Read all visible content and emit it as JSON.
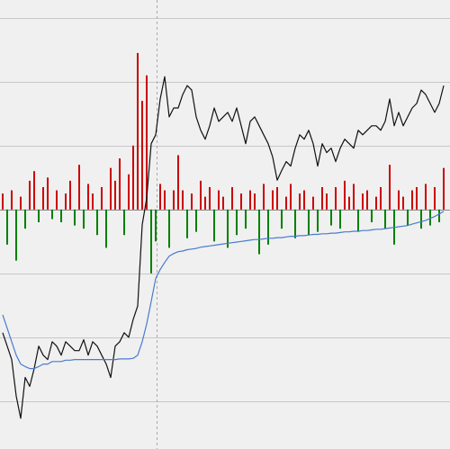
{
  "chart_data": {
    "type": "combo",
    "xlim": [
      0,
      98
    ],
    "ylim": [
      -3.75,
      3.28
    ],
    "yticks": [
      -3,
      -2,
      -1,
      0,
      1,
      2,
      3
    ],
    "grid": true,
    "vline_x": 34.2,
    "series": [
      {
        "type": "bar",
        "color_positive": "#cc0000",
        "color_negative": "#008000",
        "values": [
          0.25,
          -0.55,
          0.3,
          -0.8,
          0.2,
          -0.3,
          0.45,
          0.6,
          -0.2,
          0.35,
          0.5,
          -0.15,
          0.3,
          -0.2,
          0.25,
          0.45,
          -0.25,
          0.7,
          -0.3,
          0.4,
          0.25,
          -0.4,
          0.35,
          -0.6,
          0.65,
          0.45,
          0.8,
          -0.4,
          0.55,
          1.0,
          2.45,
          1.7,
          2.1,
          -1.0,
          -0.5,
          0.4,
          0.3,
          -0.6,
          0.3,
          0.85,
          0.3,
          -0.45,
          0.25,
          -0.35,
          0.45,
          0.2,
          0.35,
          -0.5,
          0.3,
          0.2,
          -0.6,
          0.35,
          -0.4,
          0.25,
          -0.3,
          0.3,
          0.25,
          -0.7,
          0.4,
          -0.55,
          0.3,
          0.35,
          -0.3,
          0.2,
          0.4,
          -0.45,
          0.25,
          0.3,
          -0.4,
          0.2,
          -0.35,
          0.35,
          0.25,
          -0.25,
          0.35,
          -0.3,
          0.45,
          0.2,
          0.4,
          -0.35,
          0.25,
          0.3,
          -0.2,
          0.2,
          0.35,
          -0.3,
          0.7,
          -0.55,
          0.3,
          0.2,
          -0.25,
          0.3,
          0.35,
          -0.3,
          0.4,
          -0.25,
          0.35,
          -0.2,
          0.65
        ]
      },
      {
        "type": "line",
        "color": "#111111",
        "values": [
          -1.93,
          -2.14,
          -2.35,
          -2.92,
          -3.27,
          -2.63,
          -2.77,
          -2.49,
          -2.14,
          -2.28,
          -2.35,
          -2.07,
          -2.14,
          -2.28,
          -2.07,
          -2.14,
          -2.21,
          -2.21,
          -2.04,
          -2.28,
          -2.07,
          -2.14,
          -2.28,
          -2.42,
          -2.63,
          -2.14,
          -2.07,
          -1.93,
          -2.0,
          -1.72,
          -1.51,
          -0.24,
          0.18,
          1.03,
          1.17,
          1.73,
          2.08,
          1.45,
          1.59,
          1.59,
          1.8,
          1.94,
          1.87,
          1.45,
          1.24,
          1.1,
          1.31,
          1.59,
          1.38,
          1.45,
          1.52,
          1.38,
          1.59,
          1.31,
          1.03,
          1.38,
          1.45,
          1.31,
          1.17,
          1.03,
          0.82,
          0.46,
          0.61,
          0.75,
          0.68,
          0.96,
          1.17,
          1.1,
          1.24,
          1.03,
          0.68,
          1.03,
          0.89,
          0.96,
          0.75,
          0.96,
          1.1,
          1.03,
          0.96,
          1.24,
          1.17,
          1.24,
          1.31,
          1.31,
          1.24,
          1.38,
          1.73,
          1.31,
          1.52,
          1.31,
          1.45,
          1.59,
          1.66,
          1.87,
          1.8,
          1.66,
          1.52,
          1.66,
          1.94
        ]
      },
      {
        "type": "line",
        "color": "#4a7bd0",
        "values": [
          -1.65,
          -1.86,
          -2.07,
          -2.28,
          -2.42,
          -2.46,
          -2.49,
          -2.49,
          -2.46,
          -2.42,
          -2.42,
          -2.38,
          -2.38,
          -2.38,
          -2.36,
          -2.36,
          -2.35,
          -2.35,
          -2.35,
          -2.35,
          -2.35,
          -2.35,
          -2.35,
          -2.35,
          -2.35,
          -2.35,
          -2.34,
          -2.34,
          -2.34,
          -2.33,
          -2.28,
          -2.07,
          -1.79,
          -1.44,
          -1.08,
          -0.94,
          -0.83,
          -0.73,
          -0.69,
          -0.66,
          -0.65,
          -0.63,
          -0.62,
          -0.61,
          -0.59,
          -0.58,
          -0.57,
          -0.56,
          -0.55,
          -0.54,
          -0.53,
          -0.52,
          -0.51,
          -0.5,
          -0.49,
          -0.48,
          -0.47,
          -0.47,
          -0.46,
          -0.45,
          -0.45,
          -0.44,
          -0.44,
          -0.43,
          -0.42,
          -0.42,
          -0.41,
          -0.41,
          -0.4,
          -0.39,
          -0.39,
          -0.38,
          -0.38,
          -0.37,
          -0.37,
          -0.36,
          -0.35,
          -0.35,
          -0.34,
          -0.34,
          -0.33,
          -0.33,
          -0.32,
          -0.31,
          -0.31,
          -0.3,
          -0.29,
          -0.28,
          -0.27,
          -0.26,
          -0.25,
          -0.23,
          -0.21,
          -0.19,
          -0.17,
          -0.14,
          -0.11,
          -0.07,
          -0.03
        ]
      }
    ]
  }
}
